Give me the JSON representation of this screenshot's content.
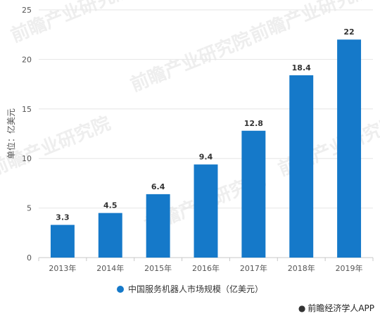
{
  "chart_data": {
    "type": "bar",
    "categories": [
      "2013年",
      "2014年",
      "2015年",
      "2016年",
      "2017年",
      "2018年",
      "2019年"
    ],
    "series": [
      {
        "name": "中国服务机器人市场规模（亿美元）",
        "values": [
          3.3,
          4.5,
          6.4,
          9.4,
          12.8,
          18.4,
          22
        ]
      }
    ],
    "data_labels": [
      "3.3",
      "4.5",
      "6.4",
      "9.4",
      "12.8",
      "18.4",
      "22"
    ],
    "ylabel": "单位：亿美元",
    "xlabel": "",
    "ylim": [
      0,
      25
    ],
    "yticks": [
      0,
      5,
      10,
      15,
      20,
      25
    ],
    "grid": true,
    "legend_position": "bottom",
    "bar_color": "#1579c9"
  },
  "watermark": "前瞻产业研究院",
  "credit": {
    "icon": "wechat-icon",
    "text": "前瞻经济学人APP"
  }
}
